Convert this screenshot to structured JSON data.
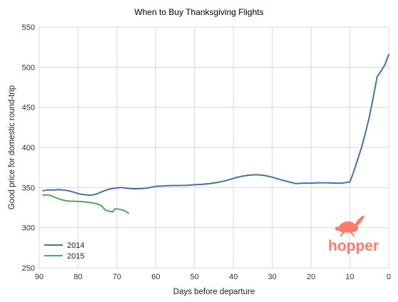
{
  "chart_data": {
    "type": "line",
    "title": "When to Buy Thanksgiving Flights",
    "xlabel": "Days before departure",
    "ylabel": "Good price for domestic round-trip",
    "xlim": [
      90,
      0
    ],
    "ylim": [
      250,
      550
    ],
    "x_ticks": [
      90,
      80,
      70,
      60,
      50,
      40,
      30,
      20,
      10,
      0
    ],
    "y_ticks": [
      250,
      300,
      350,
      400,
      450,
      500,
      550
    ],
    "grid": true,
    "legend_position": "bottom-left",
    "series": [
      {
        "name": "2014",
        "color": "#4a6fad",
        "x": [
          89,
          88,
          87,
          86,
          85,
          84,
          83,
          82,
          81,
          80,
          79,
          78,
          77,
          76,
          75,
          74,
          73,
          72,
          71,
          70,
          69,
          68,
          67,
          66,
          65,
          64,
          63,
          62,
          61,
          60,
          58,
          56,
          54,
          52,
          50,
          48,
          46,
          44,
          42,
          40,
          38,
          36,
          34,
          32,
          30,
          28,
          26,
          24,
          22,
          20,
          18,
          16,
          14,
          12,
          10,
          9,
          8,
          7,
          6,
          5,
          4,
          3,
          2,
          1,
          0
        ],
        "values": [
          346,
          347,
          347,
          347,
          347.5,
          347,
          346.5,
          345.5,
          344,
          342.5,
          341.5,
          341,
          340.5,
          341,
          342.5,
          344.5,
          346.5,
          348,
          349,
          349.5,
          350,
          349.5,
          349,
          348.5,
          348.5,
          348.8,
          349,
          349.5,
          350.5,
          351.5,
          352,
          352.5,
          352.5,
          352.8,
          353.5,
          354,
          355,
          356.5,
          358.5,
          361.5,
          364,
          365.5,
          366,
          365,
          363,
          360,
          357.5,
          355,
          355.5,
          355.5,
          356,
          356,
          355.5,
          355.5,
          357,
          370,
          385,
          400,
          418,
          438,
          462,
          488,
          495,
          503,
          516
        ]
      },
      {
        "name": "2015",
        "color": "#4fa860",
        "x": [
          89,
          88,
          87,
          86,
          85,
          84,
          83,
          82,
          81,
          80,
          79,
          78,
          77,
          76,
          75,
          74,
          73,
          72,
          71,
          70.5,
          70,
          69,
          68,
          67
        ],
        "values": [
          340.5,
          341,
          340,
          338,
          336,
          334.5,
          333.5,
          333,
          333,
          332.8,
          332.5,
          332,
          331.5,
          330.5,
          329.5,
          327.5,
          322,
          320.5,
          320,
          323.5,
          323.5,
          322.5,
          321,
          318
        ]
      }
    ]
  },
  "logo": {
    "text": "hopper",
    "icon": "rabbit-icon",
    "color": "#ff7a6b"
  }
}
